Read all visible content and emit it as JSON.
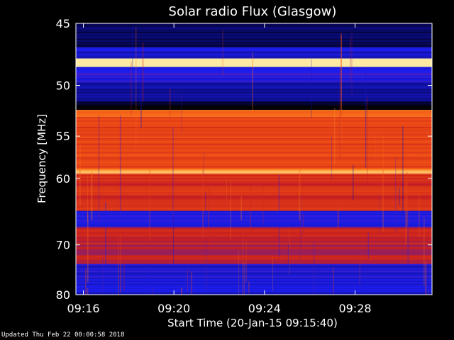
{
  "chart_data": {
    "type": "heatmap",
    "title": "Solar radio Flux (Glasgow)",
    "xlabel": "Start Time (20-Jan-15 09:15:40)",
    "ylabel": "Frequency [MHz]",
    "x_ticks": [
      "09:16",
      "09:20",
      "09:24",
      "09:28"
    ],
    "x_tick_minutes": [
      16,
      20,
      24,
      28
    ],
    "x_range_minutes": [
      15.67,
      31.4
    ],
    "y_ticks": [
      45,
      50,
      55,
      60,
      70,
      80
    ],
    "y_range": [
      45,
      80
    ],
    "y_scale": "reciprocal",
    "colormap": [
      "#000000",
      "#0a0a78",
      "#1e1ef0",
      "#c81e1e",
      "#f05014",
      "#ff9628",
      "#fff5b4"
    ],
    "bands": [
      {
        "f1": 45.0,
        "f2": 46.8,
        "level": 0.12
      },
      {
        "f1": 46.8,
        "f2": 47.7,
        "level": 0.28
      },
      {
        "f1": 47.7,
        "f2": 48.4,
        "level": 0.95
      },
      {
        "f1": 48.4,
        "f2": 49.0,
        "level": 0.35
      },
      {
        "f1": 49.0,
        "f2": 49.7,
        "level": 0.32
      },
      {
        "f1": 49.7,
        "f2": 51.5,
        "level": 0.22
      },
      {
        "f1": 51.5,
        "f2": 52.3,
        "level": 0.05
      },
      {
        "f1": 52.3,
        "f2": 53.0,
        "level": 0.75
      },
      {
        "f1": 53.0,
        "f2": 58.8,
        "level": 0.62
      },
      {
        "f1": 58.8,
        "f2": 59.2,
        "level": 0.85
      },
      {
        "f1": 59.2,
        "f2": 64.5,
        "level": 0.55
      },
      {
        "f1": 64.5,
        "f2": 67.0,
        "level": 0.33
      },
      {
        "f1": 67.0,
        "f2": 73.5,
        "level": 0.5
      },
      {
        "f1": 73.5,
        "f2": 80.0,
        "level": 0.3
      }
    ],
    "bright_features": [
      {
        "f1": 47.7,
        "f2": 48.4,
        "level": 0.98
      },
      {
        "f1": 59.0,
        "f2": 59.4,
        "level": 0.9
      }
    ]
  },
  "footer": {
    "updated": "Updated Thu Feb 22 00:00:58 2018"
  }
}
